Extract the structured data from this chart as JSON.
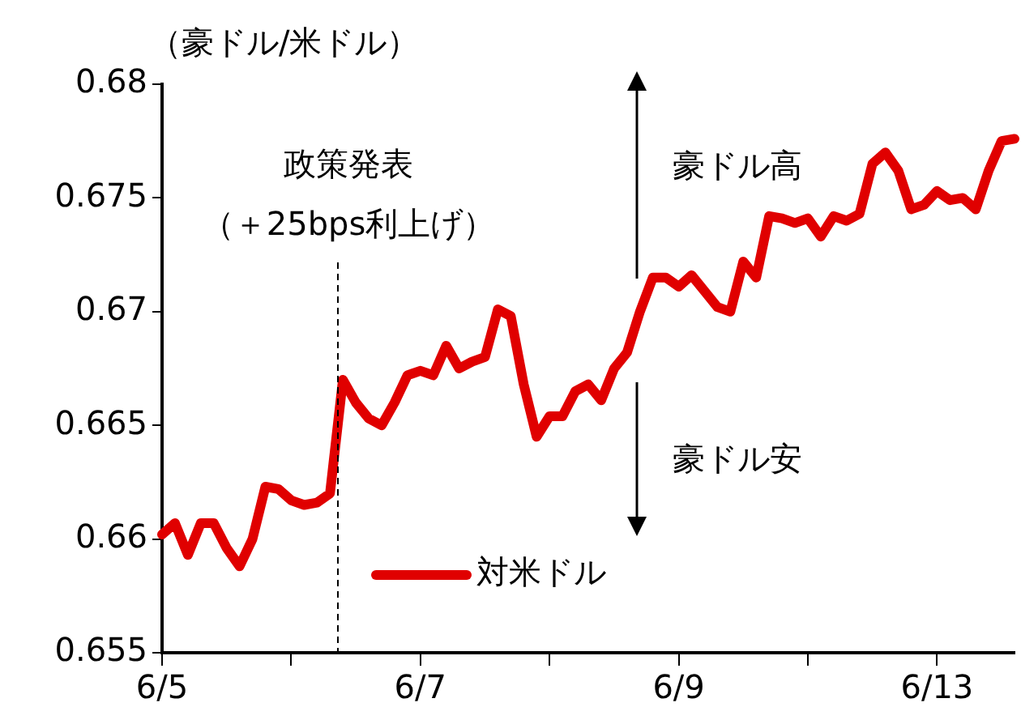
{
  "chart_data": {
    "type": "line",
    "ylabel": "（豪ドル/米ドル）",
    "categories": [
      "6/5",
      null,
      null,
      null,
      null,
      null,
      null,
      null,
      null,
      null,
      null,
      null,
      null,
      null,
      null,
      null,
      null,
      null,
      null,
      null,
      "6/7",
      null,
      null,
      null,
      null,
      null,
      null,
      null,
      null,
      null,
      null,
      null,
      null,
      null,
      null,
      null,
      null,
      null,
      null,
      null,
      "6/9",
      null,
      null,
      null,
      null,
      null,
      null,
      null,
      null,
      null,
      null,
      null,
      null,
      null,
      null,
      null,
      null,
      null,
      null,
      null,
      "6/13",
      null,
      null,
      null,
      null,
      null,
      null
    ],
    "ylim": [
      0.655,
      0.68
    ],
    "yticks": [
      0.655,
      0.66,
      0.665,
      0.67,
      0.675,
      0.68
    ],
    "grid": false,
    "legend": "bottom",
    "marker": "none",
    "line_style": "solid",
    "series": [
      {
        "name": "対米ドル",
        "color": "#e00000",
        "values": [
          0.6602,
          0.6607,
          0.6593,
          0.6607,
          0.6607,
          0.6596,
          0.6588,
          0.66,
          0.6623,
          0.6622,
          0.6617,
          0.6615,
          0.6616,
          0.662,
          0.667,
          0.666,
          0.6653,
          0.665,
          0.666,
          0.6672,
          0.6674,
          0.6672,
          0.6685,
          0.6675,
          0.6678,
          0.668,
          0.6701,
          0.6698,
          0.6668,
          0.6645,
          0.6654,
          0.6654,
          0.6665,
          0.6668,
          0.6661,
          0.6675,
          0.6682,
          0.67,
          0.6715,
          0.6715,
          0.6711,
          0.6716,
          0.6709,
          0.6702,
          0.67,
          0.6722,
          0.6715,
          0.6742,
          0.6741,
          0.6739,
          0.6741,
          0.6733,
          0.6742,
          0.674,
          0.6743,
          0.6765,
          0.677,
          0.6762,
          0.6745,
          0.6747,
          0.6753,
          0.6749,
          0.675,
          0.6745,
          0.6762,
          0.6775,
          0.6776
        ]
      }
    ],
    "annotations": [
      "政策発表",
      "（＋25bps利上げ）",
      "豪ドル高",
      "豪ドル安"
    ]
  }
}
